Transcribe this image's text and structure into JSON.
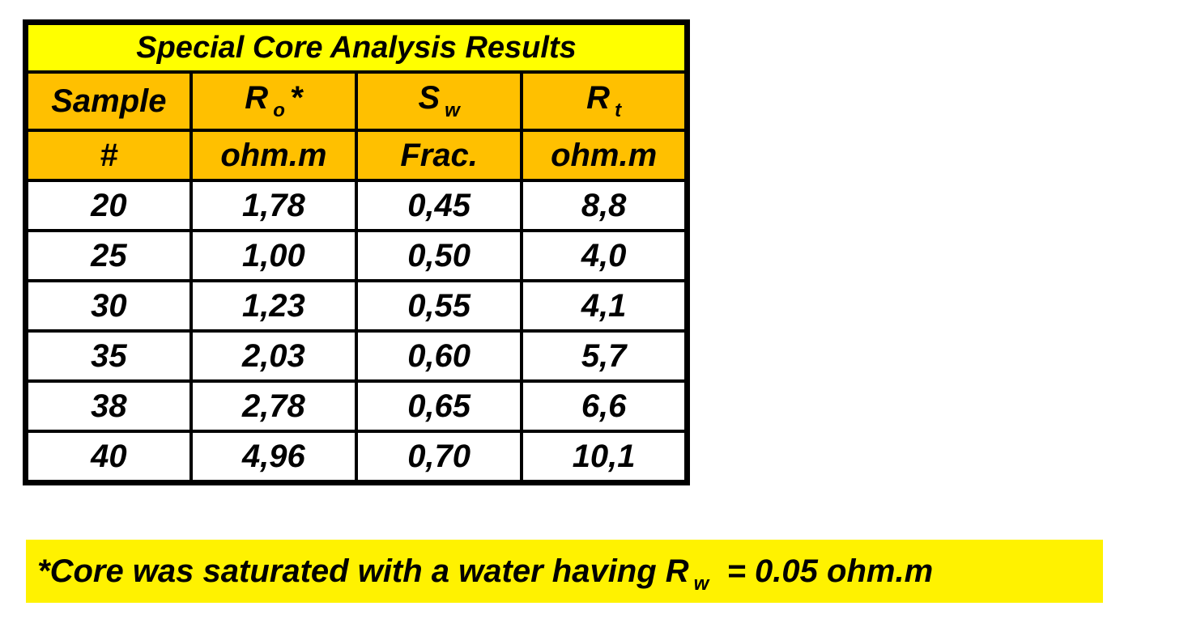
{
  "table": {
    "title": "Special Core Analysis Results",
    "header": [
      {
        "main": "Sample"
      },
      {
        "main": "R",
        "sub": "o",
        "suffix": "*"
      },
      {
        "main": "S",
        "sub": "w"
      },
      {
        "main": "R",
        "sub": "t"
      }
    ],
    "units": [
      "#",
      "ohm.m",
      "Frac.",
      "ohm.m"
    ],
    "rows": [
      [
        "20",
        "1,78",
        "0,45",
        "8,8"
      ],
      [
        "25",
        "1,00",
        "0,50",
        "4,0"
      ],
      [
        "30",
        "1,23",
        "0,55",
        "4,1"
      ],
      [
        "35",
        "2,03",
        "0,60",
        "5,7"
      ],
      [
        "38",
        "2,78",
        "0,65",
        "6,6"
      ],
      [
        "40",
        "4,96",
        "0,70",
        "10,1"
      ]
    ]
  },
  "note": {
    "before": "*Core was saturated with a water having R",
    "sub": "w",
    "after": "= 0.05 ohm.m"
  }
}
